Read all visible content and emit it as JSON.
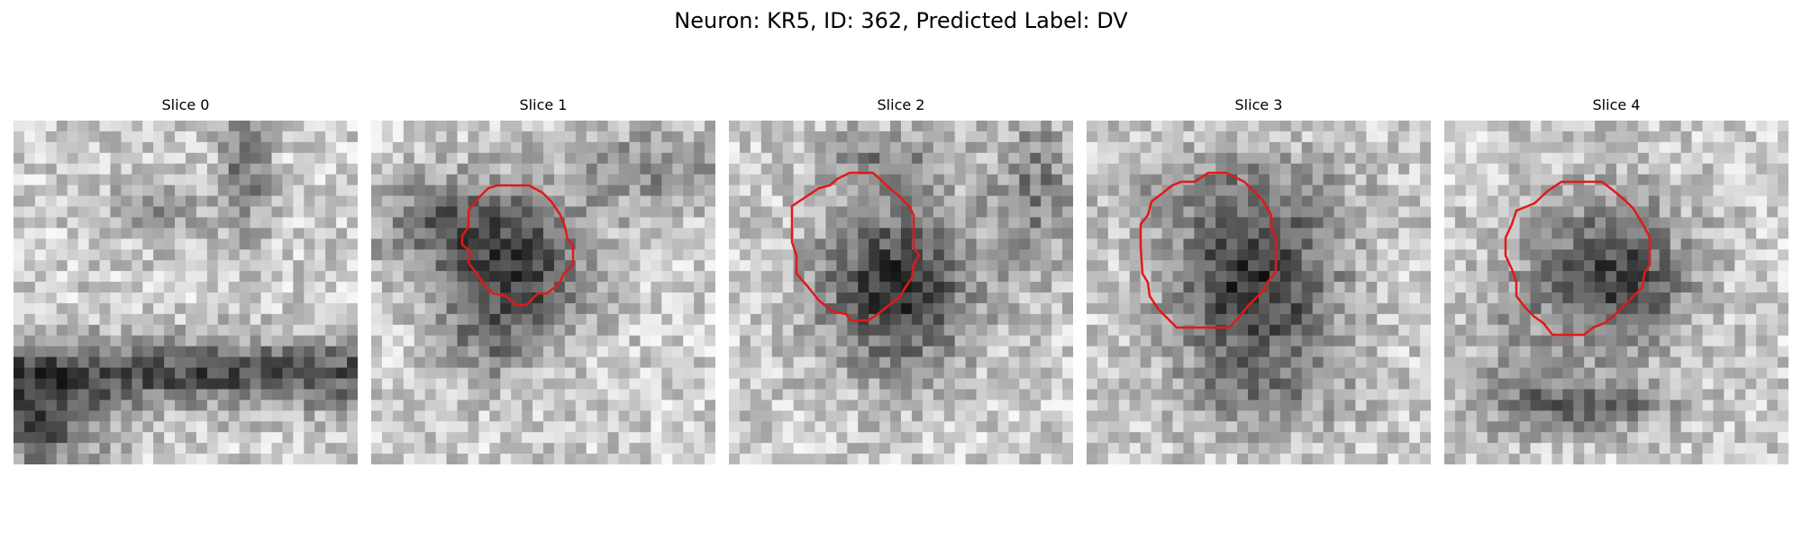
{
  "figure": {
    "title": "Neuron: KR5, ID: 362, Predicted Label: DV"
  },
  "colors": {
    "background": "#ffffff",
    "contour": "#e11919",
    "image_colormap": "grayscale"
  },
  "panels": [
    {
      "title": "Slice 0",
      "has_contour": false
    },
    {
      "title": "Slice 1",
      "has_contour": true
    },
    {
      "title": "Slice 2",
      "has_contour": true
    },
    {
      "title": "Slice 3",
      "has_contour": true
    },
    {
      "title": "Slice 4",
      "has_contour": true
    }
  ]
}
